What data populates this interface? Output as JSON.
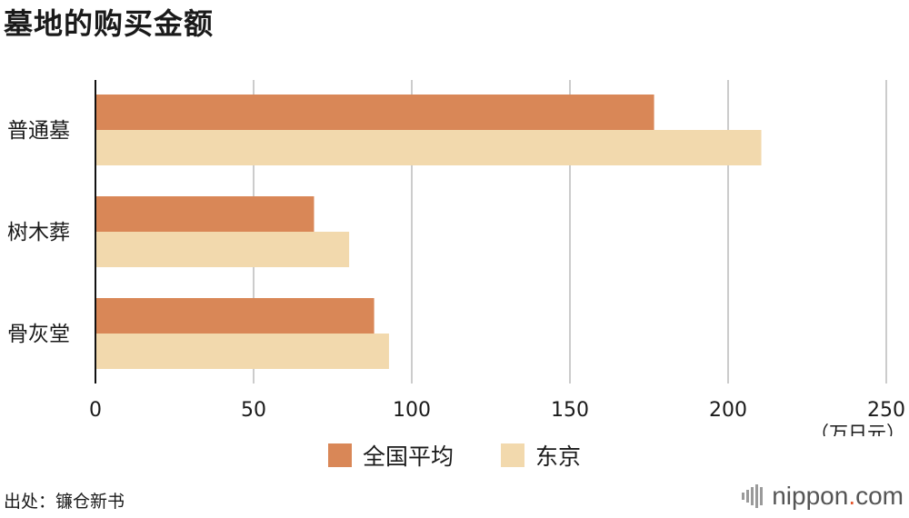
{
  "title": "墓地的购买金额",
  "source": "出处：镰仓新书",
  "brand": {
    "name": "nippon",
    "dot": ".",
    "suffix": "com"
  },
  "colors": {
    "national": "#d98757",
    "tokyo": "#f2d9ad",
    "grid": "#cccccc",
    "axis": "#111111"
  },
  "chart_data": {
    "type": "bar",
    "orientation": "horizontal",
    "title": "墓地的购买金额",
    "categories": [
      "普通墓",
      "树木葬",
      "骨灰堂"
    ],
    "series": [
      {
        "name": "全国平均",
        "values": [
          176.6,
          69.1,
          88.1
        ]
      },
      {
        "name": "东京",
        "values": [
          210.5,
          80.2,
          92.8
        ]
      }
    ],
    "xticks": [
      "0",
      "50",
      "100",
      "150",
      "200",
      "250"
    ],
    "xlim": [
      0,
      250
    ],
    "unit": "（万日元）",
    "grid": true,
    "legend": "bottom-center"
  }
}
